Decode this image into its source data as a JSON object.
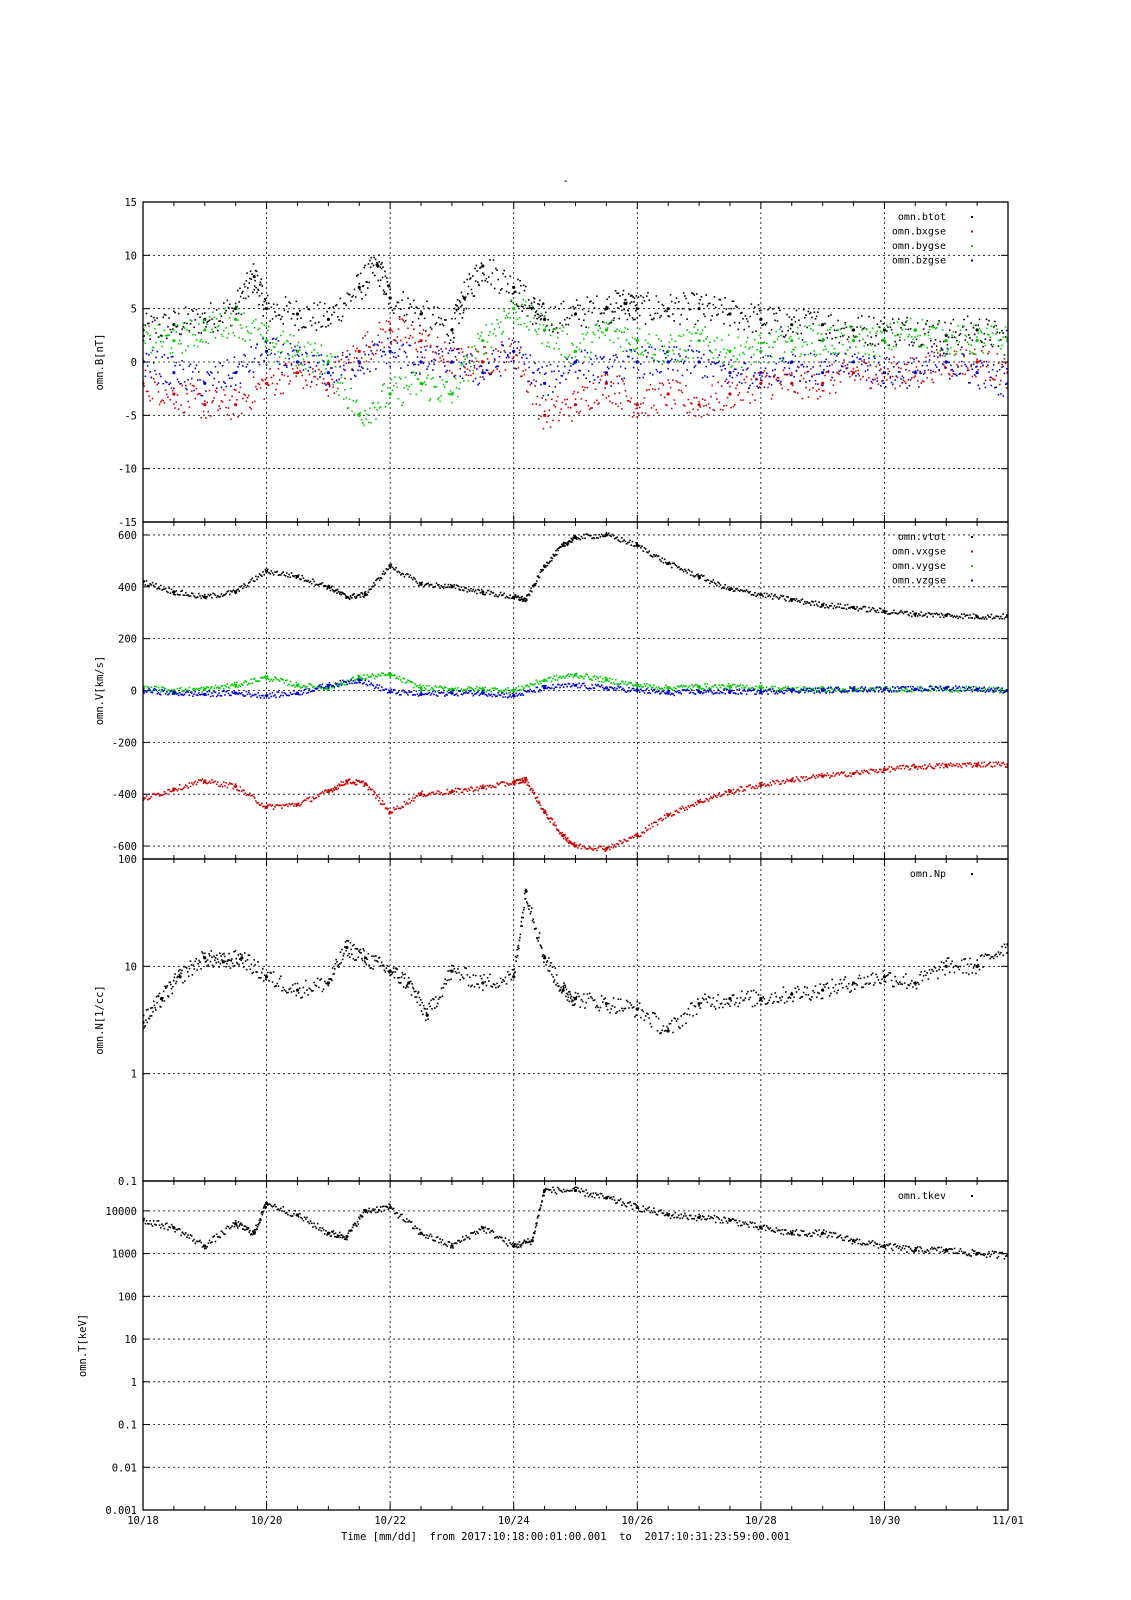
{
  "page_title": "-",
  "xaxis": {
    "label": "Time [mm/dd]",
    "from_label": "from",
    "from": "2017:10:18:00:01:00.001",
    "to_label": "to",
    "to": "2017:10:31:23:59:00.001",
    "ticks": [
      "10/18",
      "10/20",
      "10/22",
      "10/24",
      "10/26",
      "10/28",
      "10/30",
      "11/01"
    ],
    "range_days": [
      0,
      14
    ]
  },
  "colors": {
    "black": "#000000",
    "red": "#cc0000",
    "green": "#00cc00",
    "blue": "#0000cc"
  },
  "chart_data": [
    {
      "type": "scatter",
      "ylabel": "omn.B[nT]",
      "ylim": [
        -15,
        15
      ],
      "scale": "linear",
      "yticks": [
        -15,
        -10,
        -5,
        0,
        5,
        10,
        15
      ],
      "grid": true,
      "legend": "top-right",
      "series": [
        {
          "name": "omn.btot",
          "color": "#000000",
          "x": [
            0,
            0.5,
            1,
            1.5,
            1.8,
            2,
            2.5,
            3,
            3.5,
            3.8,
            4,
            4.5,
            5,
            5.2,
            5.5,
            6,
            6.3,
            6.5,
            7,
            7.5,
            7.8,
            8,
            8.5,
            9,
            9.5,
            10,
            10.5,
            11,
            11.5,
            12,
            12.5,
            13,
            13.5,
            14
          ],
          "y": [
            3,
            3.5,
            4,
            5,
            8,
            5,
            4.5,
            4,
            7,
            9,
            6,
            4.5,
            3,
            6,
            9,
            7,
            5,
            4,
            4.5,
            5,
            5.5,
            5,
            5,
            5,
            4.5,
            4,
            3.5,
            3.5,
            3,
            3,
            3,
            2.5,
            3,
            2
          ]
        },
        {
          "name": "omn.bxgse",
          "color": "#cc0000",
          "x": [
            0,
            0.5,
            1,
            1.5,
            2,
            2.5,
            3,
            3.5,
            4,
            4.5,
            5,
            5.5,
            6,
            6.5,
            7,
            7.5,
            8,
            8.5,
            9,
            9.5,
            10,
            10.5,
            11,
            11.5,
            12,
            12.5,
            13,
            13.5,
            14
          ],
          "y": [
            -2,
            -3,
            -4,
            -4,
            -2,
            -1,
            -2,
            1,
            3,
            2,
            0,
            0,
            1,
            -5,
            -4,
            -2,
            -4,
            -3,
            -4,
            -3,
            -2,
            -2,
            -2,
            -1,
            -1,
            -1,
            0,
            0,
            -1
          ]
        },
        {
          "name": "omn.bygse",
          "color": "#00cc00",
          "x": [
            0,
            0.5,
            1,
            1.5,
            2,
            2.5,
            3,
            3.5,
            4,
            4.5,
            5,
            5.5,
            6,
            6.5,
            7,
            7.5,
            8,
            8.5,
            9,
            9.5,
            10,
            10.5,
            11,
            11.5,
            12,
            12.5,
            13,
            13.5,
            14
          ],
          "y": [
            2,
            2,
            3,
            4,
            2,
            1,
            0,
            -5,
            -3,
            -2,
            -3,
            2,
            5,
            3,
            1,
            3,
            2,
            1,
            2,
            1,
            1,
            2,
            2,
            2,
            2,
            3,
            2,
            2,
            2
          ]
        },
        {
          "name": "omn.bzgse",
          "color": "#0000cc",
          "x": [
            0,
            0.5,
            1,
            1.5,
            2,
            2.5,
            3,
            3.5,
            4,
            4.5,
            5,
            5.5,
            6,
            6.5,
            7,
            7.5,
            8,
            8.5,
            9,
            9.5,
            10,
            10.5,
            11,
            11.5,
            12,
            12.5,
            13,
            13.5,
            14
          ],
          "y": [
            0,
            -1,
            -2,
            -1,
            1,
            0,
            -1,
            0,
            1,
            0,
            0,
            -1,
            1,
            -2,
            0,
            -1,
            0,
            0,
            0,
            -1,
            -1,
            0,
            -1,
            0,
            -1,
            -1,
            0,
            -1,
            -2
          ]
        }
      ]
    },
    {
      "type": "scatter",
      "ylabel": "omn.V[km/s]",
      "ylim": [
        -650,
        650
      ],
      "scale": "linear",
      "yticks": [
        -600,
        -400,
        -200,
        0,
        200,
        400,
        600
      ],
      "grid": true,
      "legend": "top-right",
      "series": [
        {
          "name": "omn.vtot",
          "color": "#000000",
          "x": [
            0,
            0.5,
            1,
            1.5,
            2,
            2.5,
            3,
            3.3,
            3.6,
            4,
            4.5,
            5,
            5.5,
            6,
            6.2,
            6.5,
            6.8,
            7,
            7.5,
            8,
            8.5,
            9,
            9.5,
            10,
            10.5,
            11,
            11.5,
            12,
            12.5,
            13,
            13.5,
            14
          ],
          "y": [
            420,
            380,
            360,
            380,
            460,
            440,
            400,
            360,
            370,
            480,
            410,
            400,
            380,
            360,
            350,
            480,
            560,
            590,
            600,
            560,
            490,
            440,
            390,
            370,
            350,
            330,
            320,
            305,
            295,
            290,
            285,
            285
          ]
        },
        {
          "name": "omn.vxgse",
          "color": "#cc0000",
          "x": [
            0,
            0.5,
            1,
            1.5,
            2,
            2.5,
            3,
            3.3,
            3.6,
            4,
            4.5,
            5,
            5.5,
            6,
            6.2,
            6.5,
            6.8,
            7,
            7.5,
            8,
            8.5,
            9,
            9.5,
            10,
            10.5,
            11,
            11.5,
            12,
            12.5,
            13,
            13.5,
            14
          ],
          "y": [
            -420,
            -380,
            -350,
            -370,
            -450,
            -440,
            -390,
            -350,
            -360,
            -470,
            -400,
            -390,
            -375,
            -355,
            -345,
            -470,
            -560,
            -600,
            -610,
            -560,
            -480,
            -430,
            -390,
            -365,
            -345,
            -330,
            -320,
            -305,
            -295,
            -290,
            -285,
            -285
          ]
        },
        {
          "name": "omn.vygse",
          "color": "#00cc00",
          "x": [
            0,
            0.5,
            1,
            1.5,
            2,
            2.5,
            3,
            3.5,
            4,
            4.5,
            5,
            5.5,
            6,
            6.5,
            7,
            7.5,
            8,
            8.5,
            9,
            9.5,
            10,
            10.5,
            11,
            11.5,
            12,
            12.5,
            13,
            13.5,
            14
          ],
          "y": [
            10,
            0,
            5,
            20,
            50,
            20,
            10,
            50,
            60,
            10,
            5,
            5,
            0,
            40,
            60,
            40,
            20,
            10,
            15,
            15,
            10,
            5,
            5,
            0,
            5,
            5,
            5,
            5,
            0
          ]
        },
        {
          "name": "omn.vzgse",
          "color": "#0000cc",
          "x": [
            0,
            0.5,
            1,
            1.5,
            2,
            2.5,
            3,
            3.5,
            4,
            4.5,
            5,
            5.5,
            6,
            6.5,
            7,
            7.5,
            8,
            8.5,
            9,
            9.5,
            10,
            10.5,
            11,
            11.5,
            12,
            12.5,
            13,
            13.5,
            14
          ],
          "y": [
            0,
            -10,
            -15,
            -10,
            -20,
            -10,
            20,
            40,
            -5,
            -15,
            -10,
            -10,
            -20,
            10,
            20,
            10,
            0,
            -10,
            -5,
            -5,
            -5,
            0,
            0,
            5,
            5,
            5,
            10,
            5,
            0
          ]
        }
      ]
    },
    {
      "type": "scatter",
      "ylabel": "omn.N[1/cc]",
      "ylim": [
        0.1,
        100
      ],
      "scale": "log",
      "yticks": [
        0.1,
        1,
        10,
        100
      ],
      "grid": true,
      "legend": "top-right",
      "series": [
        {
          "name": "omn.Np",
          "color": "#000000",
          "x": [
            0,
            0.3,
            0.6,
            1,
            1.3,
            1.6,
            2,
            2.5,
            3,
            3.3,
            3.6,
            4,
            4.3,
            4.6,
            5,
            5.5,
            6,
            6.2,
            6.5,
            6.8,
            7,
            7.5,
            8,
            8.5,
            9,
            9.5,
            10,
            10.5,
            11,
            11.5,
            12,
            12.5,
            13,
            13.5,
            14
          ],
          "y": [
            3,
            5,
            8,
            12,
            11,
            12,
            8,
            6,
            7,
            15,
            12,
            9,
            7,
            3.5,
            9,
            7,
            8,
            50,
            12,
            6,
            5,
            4.5,
            4,
            2.5,
            4.5,
            5,
            5,
            5.5,
            6,
            7,
            8,
            7,
            10,
            10,
            16
          ]
        }
      ]
    },
    {
      "type": "scatter",
      "ylabel": "omn.T[keV]",
      "ylim": [
        0.001,
        50000
      ],
      "scale": "log",
      "yticks": [
        0.001,
        0.01,
        0.1,
        1,
        10,
        100,
        1000,
        10000
      ],
      "ytick_labels": [
        "0.001",
        "0.01",
        "0.1",
        "1",
        "10",
        "100",
        "1000",
        "10000"
      ],
      "grid": true,
      "legend": "top-right",
      "series": [
        {
          "name": "omn.tkev",
          "color": "#000000",
          "x": [
            0,
            0.5,
            1,
            1.5,
            1.8,
            2,
            2.5,
            3,
            3.3,
            3.6,
            4,
            4.5,
            5,
            5.5,
            6,
            6.3,
            6.5,
            7,
            7.5,
            8,
            8.5,
            9,
            9.5,
            10,
            10.5,
            11,
            11.5,
            12,
            12.5,
            13,
            13.5,
            14
          ],
          "y": [
            6000,
            4000,
            1500,
            5000,
            3000,
            15000,
            8000,
            3000,
            2500,
            10000,
            12000,
            3000,
            1500,
            4000,
            1500,
            2000,
            30000,
            30000,
            20000,
            12000,
            8000,
            7000,
            6000,
            4000,
            3000,
            3000,
            2000,
            1500,
            1200,
            1200,
            1000,
            900
          ]
        }
      ]
    }
  ]
}
